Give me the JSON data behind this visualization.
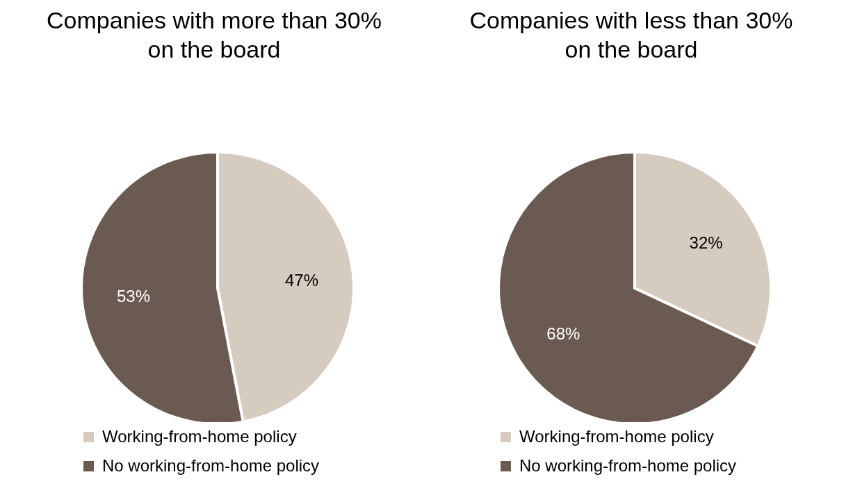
{
  "chart_data": [
    {
      "type": "pie",
      "title": "Companies with more than 30% on the board",
      "categories": [
        "Working-from-home policy",
        "No working-from-home policy"
      ],
      "values": [
        47,
        53
      ],
      "colors": [
        "#d6cbbf",
        "#6b5a52"
      ],
      "value_labels": [
        "47%",
        "53%"
      ],
      "legend": "bottom"
    },
    {
      "type": "pie",
      "title": "Companies with less than 30% on the board",
      "categories": [
        "Working-from-home policy",
        "No working-from-home policy"
      ],
      "values": [
        32,
        68
      ],
      "colors": [
        "#d6cbbf",
        "#6b5a52"
      ],
      "value_labels": [
        "32%",
        "68%"
      ],
      "legend": "bottom"
    }
  ]
}
